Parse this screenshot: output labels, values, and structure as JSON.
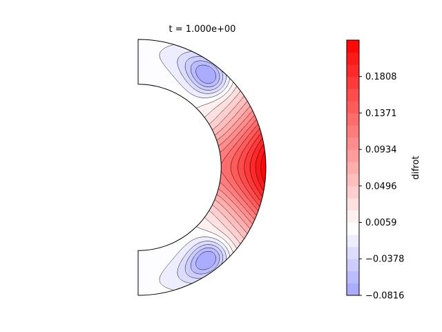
{
  "chart_data": {
    "type": "heatmap",
    "title": "t = 1.000e+00",
    "geometry": "meridional-half-annulus",
    "radius_ratio": 0.65,
    "colormap": "bwr",
    "colorbar": {
      "label": "difrot",
      "range": [
        -0.0816,
        0.2245
      ],
      "ticks": [
        -0.0816,
        -0.0378,
        0.0059,
        0.0496,
        0.0934,
        0.1371,
        0.1808
      ],
      "tick_labels": [
        "−0.0816",
        "−0.0378",
        "0.0059",
        "0.0496",
        "0.0934",
        "0.1371",
        "0.1808"
      ],
      "levels": 21
    },
    "field_features": {
      "equatorial_maximum": 0.2245,
      "polar_minimum": -0.0816,
      "zero_level": 0.0
    }
  }
}
